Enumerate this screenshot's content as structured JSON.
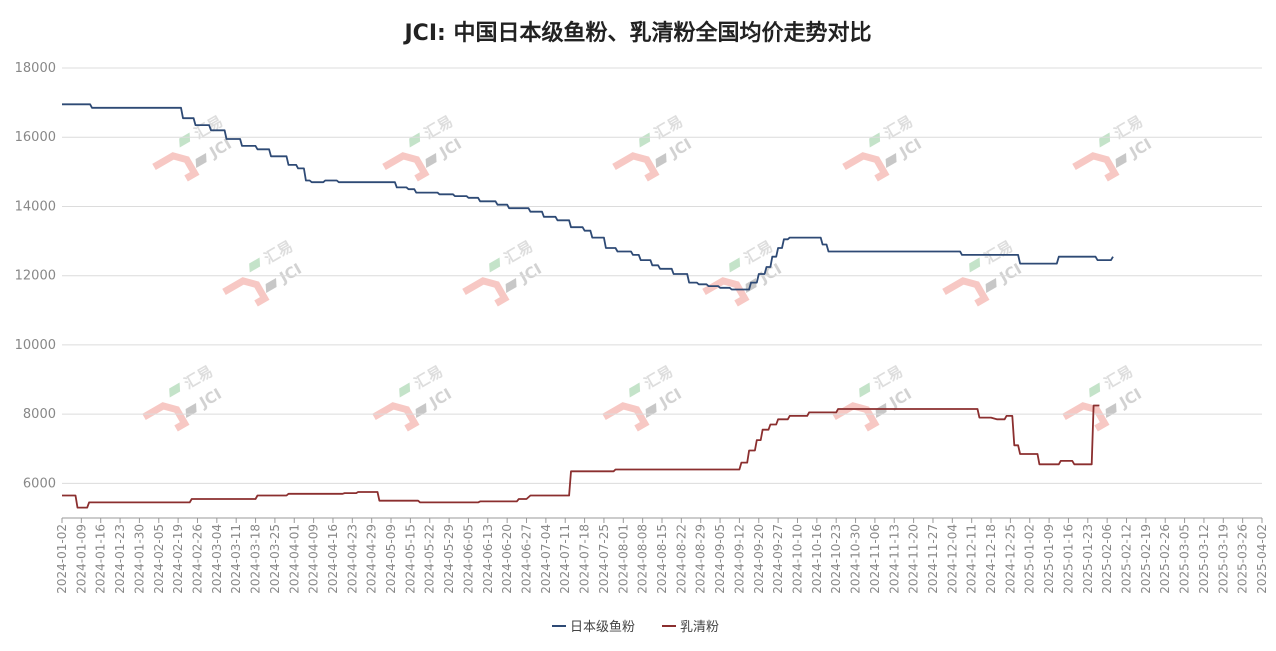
{
  "chart_data": {
    "type": "line",
    "title": "JCI: 中国日本级鱼粉、乳清粉全国均价走势对比",
    "ylim": [
      5000,
      18000
    ],
    "yticks": [
      6000,
      8000,
      10000,
      12000,
      14000,
      16000,
      18000
    ],
    "grid": true,
    "legend_position": "bottom-center",
    "watermark": {
      "brand": "汇易",
      "mark": "JCI"
    },
    "categories": [
      "2024-01-02",
      "2024-01-09",
      "2024-01-16",
      "2024-01-23",
      "2024-01-30",
      "2024-02-05",
      "2024-02-19",
      "2024-02-26",
      "2024-03-04",
      "2024-03-11",
      "2024-03-18",
      "2024-03-25",
      "2024-04-01",
      "2024-04-09",
      "2024-04-16",
      "2024-04-23",
      "2024-04-29",
      "2024-05-09",
      "2024-05-15",
      "2024-05-22",
      "2024-05-29",
      "2024-06-05",
      "2024-06-13",
      "2024-06-20",
      "2024-06-27",
      "2024-07-04",
      "2024-07-11",
      "2024-07-18",
      "2024-07-25",
      "2024-08-01",
      "2024-08-08",
      "2024-08-15",
      "2024-08-22",
      "2024-08-29",
      "2024-09-05",
      "2024-09-12",
      "2024-09-20",
      "2024-09-27",
      "2024-10-10",
      "2024-10-16",
      "2024-10-23",
      "2024-10-30",
      "2024-11-06",
      "2024-11-13",
      "2024-11-20",
      "2024-11-27",
      "2024-12-04",
      "2024-12-11",
      "2024-12-18",
      "2024-12-25",
      "2025-01-02",
      "2025-01-09",
      "2025-01-16",
      "2025-01-23",
      "2025-02-06",
      "2025-02-12",
      "2025-02-19",
      "2025-02-26",
      "2025-03-05",
      "2025-03-12",
      "2025-03-19",
      "2025-03-26",
      "2025-04-02"
    ],
    "series": [
      {
        "name": "日本级鱼粉",
        "color": "#2e4a75",
        "points": [
          [
            0,
            16950
          ],
          [
            1,
            16950
          ],
          [
            1.45,
            16950
          ],
          [
            1.55,
            16850
          ],
          [
            2,
            16850
          ],
          [
            3,
            16850
          ],
          [
            4,
            16850
          ],
          [
            5,
            16850
          ],
          [
            6,
            16850
          ],
          [
            6.15,
            16850
          ],
          [
            6.25,
            16550
          ],
          [
            6.8,
            16550
          ],
          [
            6.9,
            16350
          ],
          [
            7.6,
            16350
          ],
          [
            7.7,
            16200
          ],
          [
            8.4,
            16200
          ],
          [
            8.5,
            15950
          ],
          [
            9.2,
            15950
          ],
          [
            9.3,
            15750
          ],
          [
            10,
            15750
          ],
          [
            10.1,
            15650
          ],
          [
            10.7,
            15650
          ],
          [
            10.8,
            15450
          ],
          [
            11.6,
            15450
          ],
          [
            11.7,
            15200
          ],
          [
            12.1,
            15200
          ],
          [
            12.2,
            15100
          ],
          [
            12.5,
            15100
          ],
          [
            12.6,
            14750
          ],
          [
            12.8,
            14750
          ],
          [
            12.9,
            14700
          ],
          [
            13.5,
            14700
          ],
          [
            13.6,
            14750
          ],
          [
            14.2,
            14750
          ],
          [
            14.3,
            14700
          ],
          [
            15,
            14700
          ],
          [
            16,
            14700
          ],
          [
            17,
            14700
          ],
          [
            17.2,
            14700
          ],
          [
            17.3,
            14550
          ],
          [
            17.8,
            14550
          ],
          [
            17.9,
            14500
          ],
          [
            18.2,
            14500
          ],
          [
            18.3,
            14400
          ],
          [
            19.4,
            14400
          ],
          [
            19.5,
            14350
          ],
          [
            20.2,
            14350
          ],
          [
            20.3,
            14300
          ],
          [
            20.9,
            14300
          ],
          [
            21,
            14250
          ],
          [
            21.5,
            14250
          ],
          [
            21.6,
            14150
          ],
          [
            22.4,
            14150
          ],
          [
            22.5,
            14050
          ],
          [
            23,
            14050
          ],
          [
            23.1,
            13950
          ],
          [
            24.1,
            13950
          ],
          [
            24.2,
            13850
          ],
          [
            24.8,
            13850
          ],
          [
            24.9,
            13700
          ],
          [
            25.5,
            13700
          ],
          [
            25.6,
            13600
          ],
          [
            26.2,
            13600
          ],
          [
            26.3,
            13400
          ],
          [
            26.9,
            13400
          ],
          [
            27,
            13300
          ],
          [
            27.3,
            13300
          ],
          [
            27.4,
            13100
          ],
          [
            28,
            13100
          ],
          [
            28.1,
            12800
          ],
          [
            28.6,
            12800
          ],
          [
            28.7,
            12700
          ],
          [
            29.4,
            12700
          ],
          [
            29.5,
            12600
          ],
          [
            29.8,
            12600
          ],
          [
            29.9,
            12450
          ],
          [
            30.4,
            12450
          ],
          [
            30.5,
            12300
          ],
          [
            30.8,
            12300
          ],
          [
            30.9,
            12200
          ],
          [
            31.5,
            12200
          ],
          [
            31.6,
            12050
          ],
          [
            32.3,
            12050
          ],
          [
            32.4,
            11800
          ],
          [
            32.8,
            11800
          ],
          [
            32.9,
            11750
          ],
          [
            33.3,
            11750
          ],
          [
            33.4,
            11700
          ],
          [
            33.9,
            11700
          ],
          [
            34,
            11650
          ],
          [
            34.5,
            11650
          ],
          [
            34.6,
            11600
          ],
          [
            35.5,
            11600
          ],
          [
            35.6,
            11800
          ],
          [
            35.9,
            11800
          ],
          [
            36,
            12050
          ],
          [
            36.3,
            12050
          ],
          [
            36.4,
            12250
          ],
          [
            36.6,
            12250
          ],
          [
            36.7,
            12550
          ],
          [
            36.9,
            12550
          ],
          [
            37,
            12800
          ],
          [
            37.2,
            12800
          ],
          [
            37.3,
            13050
          ],
          [
            37.5,
            13050
          ],
          [
            37.6,
            13100
          ],
          [
            38,
            13100
          ],
          [
            39,
            13100
          ],
          [
            39.2,
            13100
          ],
          [
            39.3,
            12900
          ],
          [
            39.5,
            12900
          ],
          [
            39.6,
            12700
          ],
          [
            40,
            12700
          ],
          [
            41,
            12700
          ],
          [
            42,
            12700
          ],
          [
            43,
            12700
          ],
          [
            44,
            12700
          ],
          [
            45,
            12700
          ],
          [
            46,
            12700
          ],
          [
            46.4,
            12700
          ],
          [
            46.5,
            12600
          ],
          [
            47,
            12600
          ],
          [
            48,
            12600
          ],
          [
            49,
            12600
          ],
          [
            49.4,
            12600
          ],
          [
            49.5,
            12350
          ],
          [
            50,
            12350
          ],
          [
            51,
            12350
          ],
          [
            51.4,
            12350
          ],
          [
            51.5,
            12550
          ],
          [
            52,
            12550
          ],
          [
            53,
            12550
          ],
          [
            53.4,
            12550
          ],
          [
            53.5,
            12450
          ],
          [
            54.2,
            12450
          ],
          [
            54.3,
            12550
          ]
        ]
      },
      {
        "name": "乳清粉",
        "color": "#8b2f2f",
        "points": [
          [
            0,
            5650
          ],
          [
            0.7,
            5650
          ],
          [
            0.8,
            5300
          ],
          [
            1.3,
            5300
          ],
          [
            1.4,
            5450
          ],
          [
            2,
            5450
          ],
          [
            3,
            5450
          ],
          [
            4,
            5450
          ],
          [
            5,
            5450
          ],
          [
            6,
            5450
          ],
          [
            6.6,
            5450
          ],
          [
            6.7,
            5550
          ],
          [
            7,
            5550
          ],
          [
            8,
            5550
          ],
          [
            9,
            5550
          ],
          [
            10,
            5550
          ],
          [
            10.1,
            5650
          ],
          [
            11,
            5650
          ],
          [
            11.6,
            5650
          ],
          [
            11.7,
            5700
          ],
          [
            12,
            5700
          ],
          [
            13,
            5700
          ],
          [
            14,
            5700
          ],
          [
            14.5,
            5700
          ],
          [
            14.6,
            5720
          ],
          [
            15.2,
            5720
          ],
          [
            15.3,
            5750
          ],
          [
            16.3,
            5750
          ],
          [
            16.4,
            5500
          ],
          [
            17,
            5500
          ],
          [
            18,
            5500
          ],
          [
            18.4,
            5500
          ],
          [
            18.5,
            5450
          ],
          [
            19,
            5450
          ],
          [
            20,
            5450
          ],
          [
            21,
            5450
          ],
          [
            21.5,
            5450
          ],
          [
            21.6,
            5480
          ],
          [
            22,
            5480
          ],
          [
            23,
            5480
          ],
          [
            23.5,
            5480
          ],
          [
            23.6,
            5550
          ],
          [
            24,
            5550
          ],
          [
            24.2,
            5650
          ],
          [
            25,
            5650
          ],
          [
            26,
            5650
          ],
          [
            26.2,
            5650
          ],
          [
            26.3,
            6350
          ],
          [
            27,
            6350
          ],
          [
            28,
            6350
          ],
          [
            28.5,
            6350
          ],
          [
            28.6,
            6400
          ],
          [
            29,
            6400
          ],
          [
            30,
            6400
          ],
          [
            31,
            6400
          ],
          [
            32,
            6400
          ],
          [
            33,
            6400
          ],
          [
            34,
            6400
          ],
          [
            35,
            6400
          ],
          [
            35.1,
            6600
          ],
          [
            35.4,
            6600
          ],
          [
            35.5,
            6950
          ],
          [
            35.8,
            6950
          ],
          [
            35.9,
            7250
          ],
          [
            36.1,
            7250
          ],
          [
            36.2,
            7550
          ],
          [
            36.5,
            7550
          ],
          [
            36.6,
            7700
          ],
          [
            36.9,
            7700
          ],
          [
            37,
            7850
          ],
          [
            37.5,
            7850
          ],
          [
            37.6,
            7950
          ],
          [
            38.5,
            7950
          ],
          [
            38.6,
            8050
          ],
          [
            40,
            8050
          ],
          [
            40.1,
            8150
          ],
          [
            41,
            8150
          ],
          [
            42,
            8150
          ],
          [
            43,
            8150
          ],
          [
            44,
            8150
          ],
          [
            45,
            8150
          ],
          [
            46,
            8150
          ],
          [
            47,
            8150
          ],
          [
            47.3,
            8150
          ],
          [
            47.4,
            7900
          ],
          [
            48,
            7900
          ],
          [
            48.3,
            7850
          ],
          [
            48.7,
            7850
          ],
          [
            48.8,
            7950
          ],
          [
            49.1,
            7950
          ],
          [
            49.2,
            7100
          ],
          [
            49.4,
            7100
          ],
          [
            49.5,
            6850
          ],
          [
            50,
            6850
          ],
          [
            50.4,
            6850
          ],
          [
            50.5,
            6550
          ],
          [
            51,
            6550
          ],
          [
            51.5,
            6550
          ],
          [
            51.6,
            6650
          ],
          [
            52.2,
            6650
          ],
          [
            52.3,
            6550
          ],
          [
            53,
            6550
          ],
          [
            53.2,
            6550
          ],
          [
            53.3,
            8250
          ],
          [
            53.6,
            8250
          ]
        ]
      }
    ]
  }
}
